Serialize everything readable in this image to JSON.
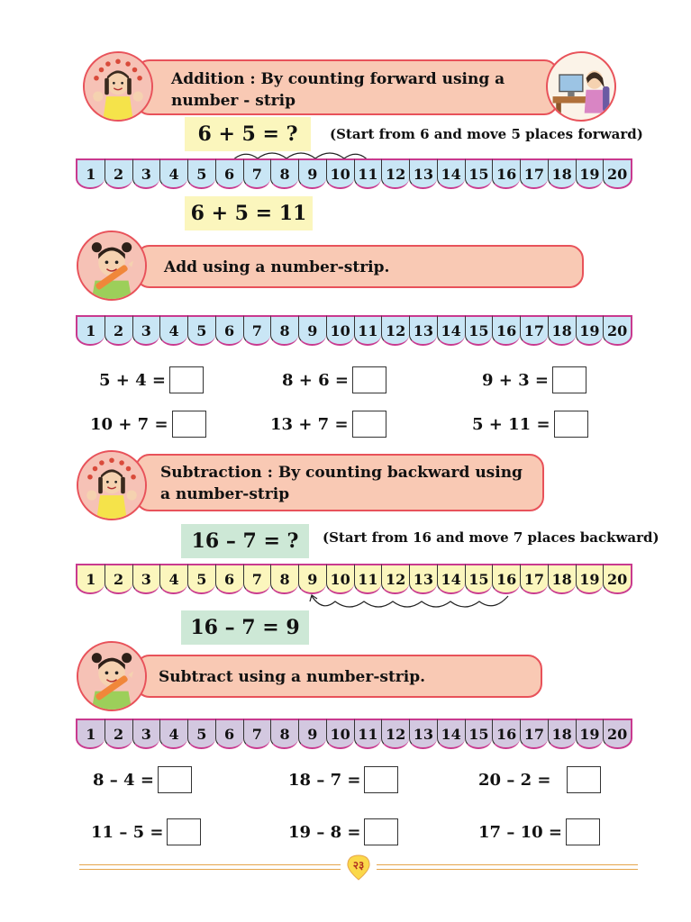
{
  "section1": {
    "title_line1": "Addition : By counting forward using a",
    "title_line2": "number - strip",
    "question": "6 + 5 = ?",
    "hint": "(Start from 6 and move 5 places forward)",
    "answer": "6 + 5 = 11"
  },
  "section2": {
    "title": "Add using a number-strip.",
    "exercises": [
      {
        "text": "5 + 4 ="
      },
      {
        "text": "8 + 6 ="
      },
      {
        "text": "9 + 3 ="
      },
      {
        "text": "10 + 7 ="
      },
      {
        "text": "13 + 7 ="
      },
      {
        "text": "5 + 11 ="
      }
    ]
  },
  "section3": {
    "title_line1": "Subtraction : By counting backward using",
    "title_line2": "a number-strip",
    "question": "16 – 7 = ?",
    "hint": "(Start from 16 and move 7 places backward)",
    "answer": "16 – 7 = 9"
  },
  "section4": {
    "title": "Subtract using a number-strip.",
    "exercises": [
      {
        "text": "8 – 4 ="
      },
      {
        "text": "18 – 7 ="
      },
      {
        "text": "20 – 2 ="
      },
      {
        "text": "11 – 5 ="
      },
      {
        "text": "19 – 8 ="
      },
      {
        "text": "17 – 10 ="
      }
    ]
  },
  "strip_numbers": [
    "1",
    "2",
    "3",
    "4",
    "5",
    "6",
    "7",
    "8",
    "9",
    "10",
    "11",
    "12",
    "13",
    "14",
    "15",
    "16",
    "17",
    "18",
    "19",
    "20"
  ],
  "page_number": "२३",
  "icons": {
    "girl_waving": "girl-waving-icon",
    "girl_computer": "girl-computer-icon",
    "girl_pencil": "girl-pencil-icon"
  },
  "colors": {
    "banner_fill": "#f9c9b4",
    "banner_border": "#e8525a",
    "strip_border": "#c93a8f",
    "strip1": "#c9e6f5",
    "strip3": "#fbf6bd",
    "strip4": "#d3c8e0"
  }
}
